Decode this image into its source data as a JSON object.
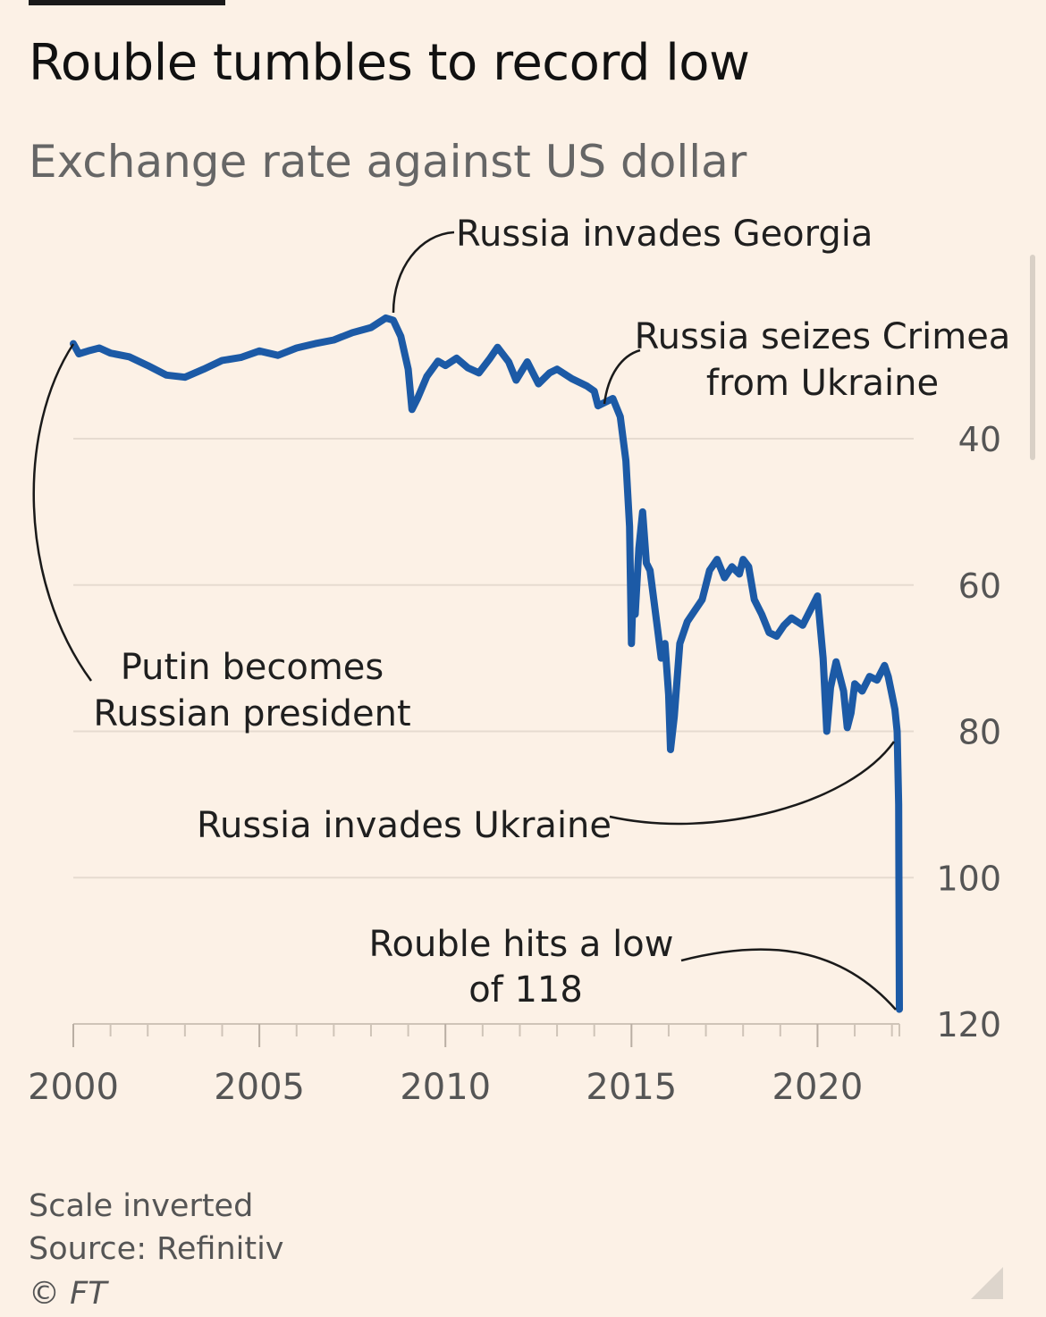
{
  "header": {
    "title": "Rouble tumbles to record low",
    "subtitle": "Exchange rate against US dollar"
  },
  "footer": {
    "note": "Scale inverted",
    "source": "Source: Refinitiv",
    "copyright": "© FT"
  },
  "colors": {
    "line": "#1c5aa6",
    "background": "#fcf1e6",
    "grid": "#e6dbd0"
  },
  "chart_data": {
    "type": "line",
    "title": "Rouble tumbles to record low",
    "subtitle": "Exchange rate against US dollar",
    "y_inverted": true,
    "ylim": [
      118,
      26.5
    ],
    "xlim": [
      2000,
      2022.2
    ],
    "y_ticks": [
      40,
      60,
      80,
      100,
      120
    ],
    "x_ticks": [
      2000,
      2005,
      2010,
      2015,
      2020
    ],
    "x_tick_labels": [
      "2000",
      "2005",
      "2010",
      "2015",
      "2020"
    ],
    "y_tick_labels": [
      "40",
      "60",
      "80",
      "100",
      "120"
    ],
    "grid": true,
    "series": [
      {
        "values": [
          [
            2000.0,
            27.0
          ],
          [
            2000.15,
            28.4
          ],
          [
            2000.4,
            28.0
          ],
          [
            2000.7,
            27.6
          ],
          [
            2001.0,
            28.3
          ],
          [
            2001.5,
            28.8
          ],
          [
            2002.0,
            30.0
          ],
          [
            2002.5,
            31.3
          ],
          [
            2003.0,
            31.6
          ],
          [
            2003.5,
            30.5
          ],
          [
            2004.0,
            29.3
          ],
          [
            2004.5,
            28.9
          ],
          [
            2005.0,
            28.0
          ],
          [
            2005.5,
            28.6
          ],
          [
            2006.0,
            27.6
          ],
          [
            2006.5,
            27.0
          ],
          [
            2007.0,
            26.5
          ],
          [
            2007.5,
            25.5
          ],
          [
            2008.0,
            24.8
          ],
          [
            2008.4,
            23.5
          ],
          [
            2008.6,
            23.8
          ],
          [
            2008.8,
            26.0
          ],
          [
            2009.0,
            30.5
          ],
          [
            2009.1,
            36.0
          ],
          [
            2009.25,
            34.5
          ],
          [
            2009.5,
            31.5
          ],
          [
            2009.8,
            29.4
          ],
          [
            2010.0,
            30.0
          ],
          [
            2010.3,
            29.0
          ],
          [
            2010.6,
            30.3
          ],
          [
            2010.9,
            31.0
          ],
          [
            2011.2,
            29.0
          ],
          [
            2011.4,
            27.5
          ],
          [
            2011.7,
            29.5
          ],
          [
            2011.9,
            32.0
          ],
          [
            2012.2,
            29.5
          ],
          [
            2012.5,
            32.5
          ],
          [
            2012.8,
            31.0
          ],
          [
            2013.0,
            30.5
          ],
          [
            2013.4,
            31.8
          ],
          [
            2013.8,
            32.8
          ],
          [
            2014.0,
            33.5
          ],
          [
            2014.1,
            35.5
          ],
          [
            2014.3,
            35.0
          ],
          [
            2014.5,
            34.5
          ],
          [
            2014.7,
            37.0
          ],
          [
            2014.85,
            43.0
          ],
          [
            2014.95,
            52.0
          ],
          [
            2015.0,
            68.0
          ],
          [
            2015.05,
            60.0
          ],
          [
            2015.1,
            64.0
          ],
          [
            2015.2,
            55.0
          ],
          [
            2015.3,
            50.0
          ],
          [
            2015.4,
            57.0
          ],
          [
            2015.5,
            58.0
          ],
          [
            2015.6,
            62.0
          ],
          [
            2015.7,
            66.0
          ],
          [
            2015.8,
            70.0
          ],
          [
            2015.9,
            68.0
          ],
          [
            2016.0,
            75.0
          ],
          [
            2016.05,
            82.5
          ],
          [
            2016.15,
            78.0
          ],
          [
            2016.3,
            68.0
          ],
          [
            2016.5,
            65.0
          ],
          [
            2016.7,
            63.5
          ],
          [
            2016.9,
            62.0
          ],
          [
            2017.1,
            58.0
          ],
          [
            2017.3,
            56.5
          ],
          [
            2017.5,
            59.0
          ],
          [
            2017.7,
            57.5
          ],
          [
            2017.9,
            58.5
          ],
          [
            2018.0,
            56.5
          ],
          [
            2018.15,
            57.5
          ],
          [
            2018.3,
            62.0
          ],
          [
            2018.5,
            64.0
          ],
          [
            2018.7,
            66.5
          ],
          [
            2018.9,
            67.0
          ],
          [
            2019.1,
            65.5
          ],
          [
            2019.3,
            64.5
          ],
          [
            2019.6,
            65.5
          ],
          [
            2019.9,
            62.5
          ],
          [
            2020.0,
            61.5
          ],
          [
            2020.15,
            70.0
          ],
          [
            2020.25,
            80.0
          ],
          [
            2020.35,
            74.0
          ],
          [
            2020.5,
            70.5
          ],
          [
            2020.7,
            74.5
          ],
          [
            2020.8,
            79.5
          ],
          [
            2020.9,
            77.5
          ],
          [
            2021.0,
            73.5
          ],
          [
            2021.2,
            74.5
          ],
          [
            2021.4,
            72.5
          ],
          [
            2021.6,
            73.0
          ],
          [
            2021.8,
            71.0
          ],
          [
            2021.9,
            72.5
          ],
          [
            2022.0,
            75.0
          ],
          [
            2022.08,
            77.0
          ],
          [
            2022.14,
            80.0
          ],
          [
            2022.18,
            90.0
          ],
          [
            2022.2,
            118.0
          ]
        ]
      }
    ],
    "annotations": [
      {
        "text": "Putin becomes",
        "text2": "Russian president"
      },
      {
        "text": "Russia invades Georgia"
      },
      {
        "text": "Russia seizes Crimea",
        "text2": "from Ukraine"
      },
      {
        "text": "Russia invades Ukraine"
      },
      {
        "text": "Rouble hits a low",
        "text2": "of 118"
      }
    ]
  }
}
